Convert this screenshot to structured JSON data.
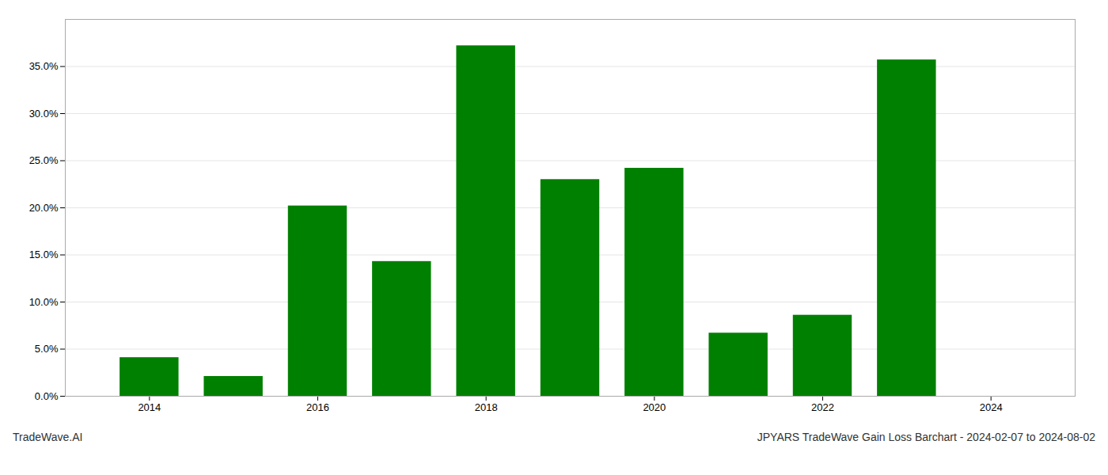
{
  "chart_data": {
    "type": "bar",
    "title": "JPYARS TradeWave Gain Loss Barchart - 2024-02-07 to 2024-08-02",
    "annotations": [
      "TradeWave.AI"
    ],
    "x": [
      2014,
      2015,
      2016,
      2017,
      2018,
      2019,
      2020,
      2021,
      2022,
      2023,
      2024
    ],
    "values": [
      0.041,
      0.021,
      0.202,
      0.143,
      0.372,
      0.23,
      0.242,
      0.067,
      0.086,
      0.357,
      0.0
    ],
    "color": "#008000",
    "xlim": [
      2013.0,
      2025.0
    ],
    "xticks": [
      2014,
      2016,
      2018,
      2020,
      2022,
      2024
    ],
    "ylim": [
      0.0,
      0.4
    ],
    "yticks": [
      {
        "value": 0.0,
        "label": "0.0%"
      },
      {
        "value": 0.05,
        "label": "5.0%"
      },
      {
        "value": 0.1,
        "label": "10.0%"
      },
      {
        "value": 0.15,
        "label": "15.0%"
      },
      {
        "value": 0.2,
        "label": "20.0%"
      },
      {
        "value": 0.25,
        "label": "25.0%"
      },
      {
        "value": 0.3,
        "label": "30.0%"
      },
      {
        "value": 0.35,
        "label": "35.0%"
      }
    ],
    "grid": true
  }
}
